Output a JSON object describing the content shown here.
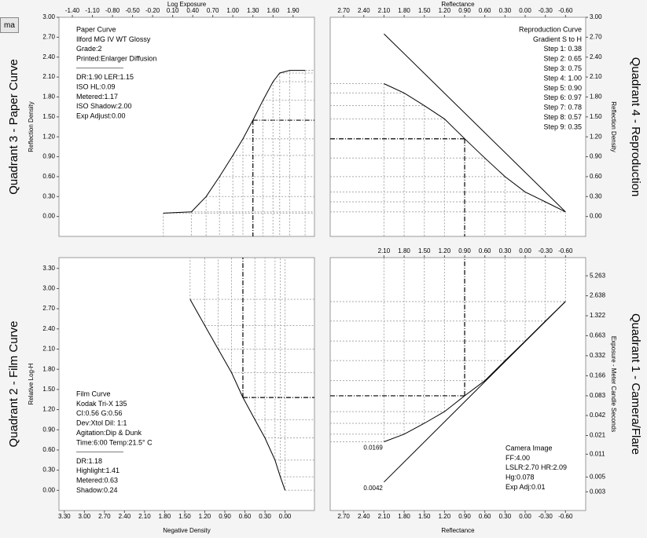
{
  "toolbar_button": "ma",
  "chart_data": [
    {
      "type": "line",
      "side_label": "Quadrant 3 - Paper Curve",
      "xlabel": "Log Exposure",
      "ylabel": "Reflection Density",
      "xlim": [
        -1.6,
        2.22
      ],
      "ylim": [
        -0.3,
        3.0
      ],
      "xticks": [
        {
          "value": -1.4,
          "label": "-1.40"
        },
        {
          "value": -1.1,
          "label": "-1.10"
        },
        {
          "value": -0.8,
          "label": "-0.80"
        },
        {
          "value": -0.5,
          "label": "-0.50"
        },
        {
          "value": -0.2,
          "label": "-0.20"
        },
        {
          "value": 0.1,
          "label": "0.10"
        },
        {
          "value": 0.4,
          "label": "0.40"
        },
        {
          "value": 0.7,
          "label": "0.70"
        },
        {
          "value": 1,
          "label": "1.00"
        },
        {
          "value": 1.3,
          "label": "1.30"
        },
        {
          "value": 1.6,
          "label": "1.60"
        },
        {
          "value": 1.9,
          "label": "1.90"
        }
      ],
      "yticks": [
        {
          "value": 0,
          "label": "0.00"
        },
        {
          "value": 0.3,
          "label": "0.30"
        },
        {
          "value": 0.6,
          "label": "0.60"
        },
        {
          "value": 0.9,
          "label": "0.90"
        },
        {
          "value": 1.2,
          "label": "1.20"
        },
        {
          "value": 1.5,
          "label": "1.50"
        },
        {
          "value": 1.8,
          "label": "1.80"
        },
        {
          "value": 2.1,
          "label": "2.10"
        },
        {
          "value": 2.4,
          "label": "2.40"
        },
        {
          "value": 2.7,
          "label": "2.70"
        },
        {
          "value": 3,
          "label": "3.00"
        }
      ],
      "series": [
        {
          "color": "#000000",
          "x": [
            -0.04,
            0.38,
            0.6,
            0.8,
            1.0,
            1.15,
            1.3,
            1.45,
            1.6,
            1.7,
            1.85,
            2.08
          ],
          "values": [
            0.05,
            0.07,
            0.3,
            0.6,
            0.92,
            1.17,
            1.45,
            1.75,
            2.03,
            2.16,
            2.2,
            2.2
          ]
        }
      ],
      "notes": [
        [
          "Paper Curve",
          "Ilford MG IV WT  Glossy",
          "Grade:2",
          "Printed:Enlarger Diffusion"
        ],
        [
          "DR:1.90  LER:1.15",
          "ISO HL:0.09",
          "Metered:1.17",
          "ISO Shadow:2.00",
          "Exp Adjust:0.00"
        ]
      ]
    },
    {
      "type": "line",
      "side_label": "Quadrant 4 - Reproduction",
      "xlabel": "Reflectance",
      "ylabel": "Reflection Density",
      "xlim": [
        2.9,
        -0.9
      ],
      "ylim": [
        -0.3,
        3.0
      ],
      "xticks": [
        {
          "value": 2.7,
          "label": "2.70"
        },
        {
          "value": 2.4,
          "label": "2.40"
        },
        {
          "value": 2.1,
          "label": "2.10"
        },
        {
          "value": 1.8,
          "label": "1.80"
        },
        {
          "value": 1.5,
          "label": "1.50"
        },
        {
          "value": 1.2,
          "label": "1.20"
        },
        {
          "value": 0.9,
          "label": "0.90"
        },
        {
          "value": 0.6,
          "label": "0.60"
        },
        {
          "value": 0.3,
          "label": "0.30"
        },
        {
          "value": 0,
          "label": "0.00"
        },
        {
          "value": -0.3,
          "label": "-0.30"
        },
        {
          "value": -0.6,
          "label": "-0.60"
        }
      ],
      "yticks": [
        {
          "value": 0,
          "label": "0.00"
        },
        {
          "value": 0.3,
          "label": "0.30"
        },
        {
          "value": 0.6,
          "label": "0.60"
        },
        {
          "value": 0.9,
          "label": "0.90"
        },
        {
          "value": 1.2,
          "label": "1.20"
        },
        {
          "value": 1.5,
          "label": "1.50"
        },
        {
          "value": 1.8,
          "label": "1.80"
        },
        {
          "value": 2.1,
          "label": "2.10"
        },
        {
          "value": 2.4,
          "label": "2.40"
        },
        {
          "value": 2.7,
          "label": "2.70"
        },
        {
          "value": 3,
          "label": "3.00"
        }
      ],
      "series": [
        {
          "color": "#000000",
          "x": [
            2.1,
            -0.6
          ],
          "values": [
            2.75,
            0.07
          ]
        },
        {
          "color": "#000000",
          "x": [
            2.1,
            1.8,
            1.5,
            1.2,
            0.9,
            0.6,
            0.3,
            0,
            -0.3,
            -0.6
          ],
          "values": [
            2.0,
            1.86,
            1.67,
            1.47,
            1.17,
            0.88,
            0.6,
            0.37,
            0.22,
            0.07
          ]
        }
      ],
      "notes": [
        [
          "Reproduction Curve",
          "Gradient S to H",
          "Step 1: 0.38",
          "Step 2: 0.65",
          "Step 3: 0.75",
          "Step 4: 1.00",
          "Step 5: 0.90",
          "Step 6: 0.97",
          "Step 7: 0.78",
          "Step 8: 0.57",
          "Step 9: 0.35"
        ]
      ]
    },
    {
      "type": "line",
      "side_label": "Quadrant 2 - Film Curve",
      "xlabel": "Negative Density",
      "ylabel": "Relative Log-H",
      "xlim": [
        3.38,
        -0.44
      ],
      "ylim": [
        -0.3,
        3.46
      ],
      "xticks": [
        {
          "value": 3.3,
          "label": "3.30"
        },
        {
          "value": 3,
          "label": "3.00"
        },
        {
          "value": 2.7,
          "label": "2.70"
        },
        {
          "value": 2.4,
          "label": "2.40"
        },
        {
          "value": 2.1,
          "label": "2.10"
        },
        {
          "value": 1.8,
          "label": "1.80"
        },
        {
          "value": 1.5,
          "label": "1.50"
        },
        {
          "value": 1.2,
          "label": "1.20"
        },
        {
          "value": 0.9,
          "label": "0.90"
        },
        {
          "value": 0.6,
          "label": "0.60"
        },
        {
          "value": 0.3,
          "label": "0.30"
        },
        {
          "value": 0,
          "label": "0.00"
        }
      ],
      "yticks": [
        {
          "value": 0,
          "label": "0.00"
        },
        {
          "value": 0.3,
          "label": "0.30"
        },
        {
          "value": 0.6,
          "label": "0.60"
        },
        {
          "value": 0.9,
          "label": "0.90"
        },
        {
          "value": 1.2,
          "label": "1.20"
        },
        {
          "value": 1.5,
          "label": "1.50"
        },
        {
          "value": 1.8,
          "label": "1.80"
        },
        {
          "value": 2.1,
          "label": "2.10"
        },
        {
          "value": 2.4,
          "label": "2.40"
        },
        {
          "value": 2.7,
          "label": "2.70"
        },
        {
          "value": 3,
          "label": "3.00"
        },
        {
          "value": 3.3,
          "label": "3.30"
        }
      ],
      "series": [
        {
          "color": "#000000",
          "x": [
            1.42,
            1.2,
            1.0,
            0.8,
            0.63,
            0.45,
            0.3,
            0.15,
            0.07,
            0
          ],
          "values": [
            2.84,
            2.45,
            2.1,
            1.75,
            1.38,
            1.05,
            0.78,
            0.45,
            0.2,
            0
          ]
        }
      ],
      "notes": [
        [
          "Film Curve",
          "Kodak Tri-X 135",
          "CI:0.56  G:0.56",
          "Dev:Xtol  Dil: 1:1",
          "Agitation:Dip & Dunk",
          "Time:6:00  Temp:21.5° C"
        ],
        [
          "DR:1.18",
          "Highlight:1.41",
          "Metered:0.63",
          "Shadow:0.24"
        ]
      ]
    },
    {
      "type": "line",
      "side_label": "Quadrant 1 - Camera/Flare",
      "xlabel": "Reflectance",
      "ylabel": "Exposure - Meter Candle Seconds",
      "xlim": [
        2.9,
        -0.9
      ],
      "ylim": [
        0.00157,
        9.87
      ],
      "log_y": true,
      "xticks": [
        {
          "value": 2.7,
          "label": "2.70"
        },
        {
          "value": 2.4,
          "label": "2.40"
        },
        {
          "value": 2.1,
          "label": "2.10"
        },
        {
          "value": 1.8,
          "label": "1.80"
        },
        {
          "value": 1.5,
          "label": "1.50"
        },
        {
          "value": 1.2,
          "label": "1.20"
        },
        {
          "value": 0.9,
          "label": "0.90"
        },
        {
          "value": 0.6,
          "label": "0.60"
        },
        {
          "value": 0.3,
          "label": "0.30"
        },
        {
          "value": 0,
          "label": "0.00"
        },
        {
          "value": -0.3,
          "label": "-0.30"
        },
        {
          "value": -0.6,
          "label": "-0.60"
        }
      ],
      "xticks_top": [
        {
          "value": 2.1,
          "label": "2.10"
        },
        {
          "value": 1.8,
          "label": "1.80"
        },
        {
          "value": 1.5,
          "label": "1.50"
        },
        {
          "value": 1.2,
          "label": "1.20"
        },
        {
          "value": 0.9,
          "label": "0.90"
        },
        {
          "value": 0.6,
          "label": "0.60"
        },
        {
          "value": 0.3,
          "label": "0.30"
        },
        {
          "value": 0,
          "label": "0.00"
        },
        {
          "value": -0.3,
          "label": "-0.30"
        },
        {
          "value": -0.6,
          "label": "-0.60"
        }
      ],
      "yticks": [
        0.003,
        0.005,
        0.011,
        0.021,
        0.042,
        0.083,
        0.166,
        0.332,
        0.663,
        1.322,
        2.638,
        5.263
      ],
      "series": [
        {
          "color": "#000000",
          "x": [
            2.1,
            1.8,
            1.5,
            1.2,
            0.9,
            0.6,
            0.3,
            0,
            -0.3,
            -0.6
          ],
          "values": [
            0.0169,
            0.022,
            0.032,
            0.048,
            0.083,
            0.14,
            0.28,
            0.55,
            1.1,
            2.16
          ]
        },
        {
          "color": "#000000",
          "x": [
            2.1,
            -0.6
          ],
          "values": [
            0.0042,
            2.16
          ]
        }
      ],
      "annotations": [
        "0.0169",
        "0.0042"
      ],
      "notes": [
        [
          "Camera Image",
          "FF:4.00",
          "LSLR:2.70 HR:2.09",
          "Hg:0.078",
          "Exp Adj:0.01"
        ]
      ]
    }
  ]
}
